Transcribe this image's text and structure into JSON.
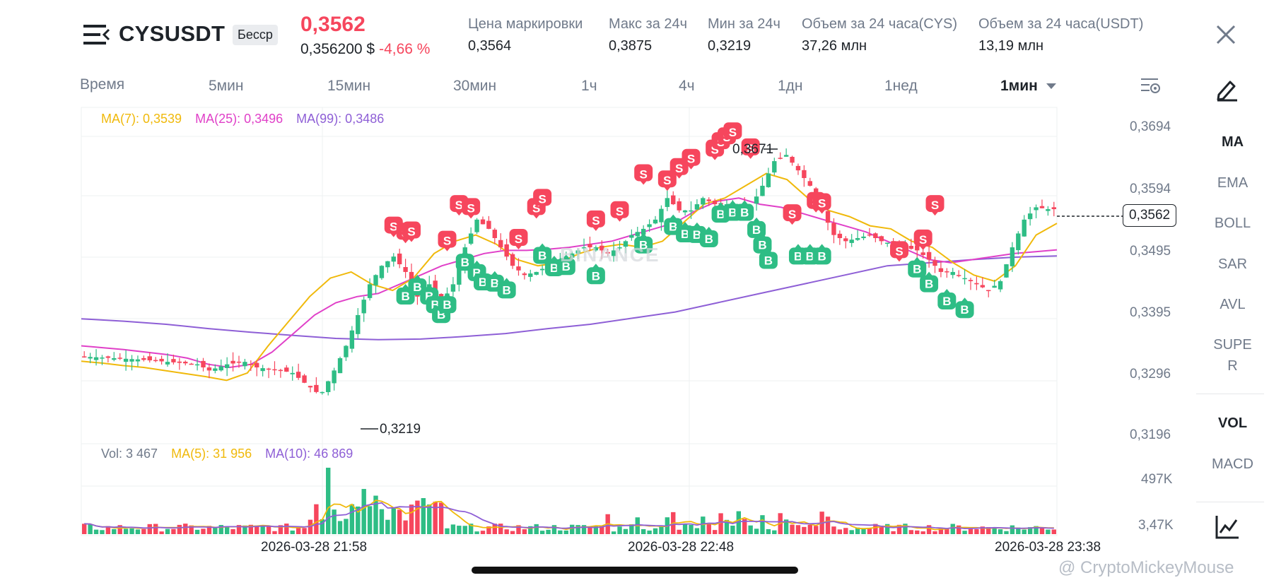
{
  "header": {
    "symbol": "CYSUSDT",
    "badge": "Бесср",
    "last_price": "0,3562",
    "usd_price": "0,356200 $",
    "change": "-4,66 %",
    "stats": [
      {
        "label": "Цена маркировки",
        "value": "0,3564"
      },
      {
        "label": "Макс за 24ч",
        "value": "0,3875"
      },
      {
        "label": "Мин за 24ч",
        "value": "0,3219"
      },
      {
        "label": "Объем за 24 часа(CYS)",
        "value": "37,26 млн"
      },
      {
        "label": "Объем за 24 часа(USDT)",
        "value": "13,19 млн"
      }
    ]
  },
  "timeframes": [
    "Время",
    "5мин",
    "15мин",
    "30мин",
    "1ч",
    "4ч",
    "1дн",
    "1нед",
    "1мин"
  ],
  "active_timeframe": "1мин",
  "indicators": [
    "MA",
    "EMA",
    "BOLL",
    "SAR",
    "AVL",
    "SUPE",
    "R",
    "VOL",
    "MACD"
  ],
  "legend": {
    "ma7": "MA(7): 0,3539",
    "ma25": "MA(25): 0,3496",
    "ma99": "MA(99): 0,3486",
    "vol": "Vol: 3 467",
    "vol_ma5": "MA(5): 31 956",
    "vol_ma10": "MA(10): 46 869"
  },
  "price_axis": [
    "0,3694",
    "0,3594",
    "0,3495",
    "0,3395",
    "0,3296",
    "0,3196"
  ],
  "volume_axis": [
    "497K",
    "3,47K"
  ],
  "time_axis": [
    "2026-03-28 21:58",
    "2026-03-28 22:48",
    "2026-03-28 23:38"
  ],
  "current_price": "0,3562",
  "high_marker": "0,3671",
  "low_marker": "0,3219",
  "marker_labels": {
    "sell": "S",
    "buy": "B"
  },
  "colors": {
    "up": "#2ebd85",
    "down": "#f6465d",
    "ma7": "#f0b90b",
    "ma25": "#e040c8",
    "ma99": "#8e5fd6"
  },
  "watermark": "@ CryptoMickeyMouse",
  "chart_watermark": "BINANCE",
  "chart_data": {
    "type": "candlestick",
    "ylim": [
      0.3196,
      0.3694
    ],
    "ma_lines": {
      "MA(7)": [
        0.3315,
        0.3312,
        0.3308,
        0.3305,
        0.33,
        0.3295,
        0.329,
        0.3284,
        0.3296,
        0.334,
        0.338,
        0.342,
        0.345,
        0.346,
        0.344,
        0.343,
        0.345,
        0.349,
        0.351,
        0.352,
        0.3505,
        0.348,
        0.347,
        0.3475,
        0.349,
        0.35,
        0.3505,
        0.35,
        0.351,
        0.354,
        0.357,
        0.358,
        0.36,
        0.362,
        0.361,
        0.358,
        0.356,
        0.355,
        0.3535,
        0.353,
        0.351,
        0.35,
        0.3475,
        0.3455,
        0.3445,
        0.347,
        0.352,
        0.3539
      ],
      "MA(25)": [
        0.334,
        0.3337,
        0.3334,
        0.333,
        0.3326,
        0.332,
        0.331,
        0.3305,
        0.331,
        0.333,
        0.336,
        0.339,
        0.341,
        0.342,
        0.3425,
        0.344,
        0.3455,
        0.347,
        0.348,
        0.349,
        0.3495,
        0.3495,
        0.3497,
        0.35,
        0.3505,
        0.351,
        0.352,
        0.353,
        0.354,
        0.356,
        0.3575,
        0.358,
        0.357,
        0.3565,
        0.3555,
        0.3545,
        0.3535,
        0.3525,
        0.351,
        0.3495,
        0.348,
        0.3475,
        0.348,
        0.3485,
        0.349,
        0.3493,
        0.3496
      ],
      "MA(99)": [
        0.3384,
        0.338,
        0.3375,
        0.3368,
        0.3362,
        0.3357,
        0.3352,
        0.335,
        0.3351,
        0.3355,
        0.336,
        0.3368,
        0.3375,
        0.3385,
        0.3395,
        0.341,
        0.3425,
        0.344,
        0.3455,
        0.347,
        0.3475,
        0.348,
        0.3484,
        0.3486
      ]
    },
    "high": 0.3671,
    "low": 0.3219,
    "last": 0.3562
  }
}
